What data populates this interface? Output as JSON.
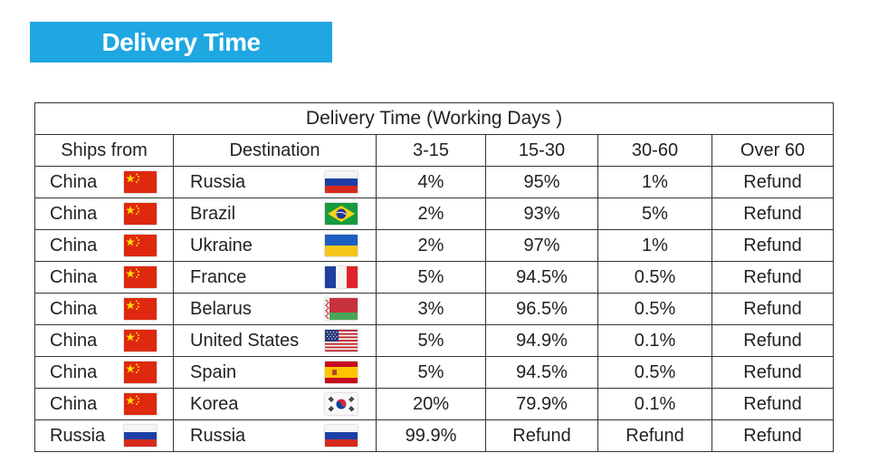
{
  "banner": {
    "title": "Delivery Time"
  },
  "table": {
    "title": "Delivery Time (Working Days )",
    "headers": [
      "Ships from",
      "Destination",
      "3-15",
      "15-30",
      "30-60",
      "Over 60"
    ],
    "rows": [
      {
        "from": "China",
        "from_flag": "china-flag",
        "dest": "Russia",
        "dest_flag": "russia-flag",
        "d3_15": "4%",
        "d15_30": "95%",
        "d30_60": "1%",
        "over60": "Refund"
      },
      {
        "from": "China",
        "from_flag": "china-flag",
        "dest": "Brazil",
        "dest_flag": "brazil-flag",
        "d3_15": "2%",
        "d15_30": "93%",
        "d30_60": "5%",
        "over60": "Refund"
      },
      {
        "from": "China",
        "from_flag": "china-flag",
        "dest": "Ukraine",
        "dest_flag": "ukraine-flag",
        "d3_15": "2%",
        "d15_30": "97%",
        "d30_60": "1%",
        "over60": "Refund"
      },
      {
        "from": "China",
        "from_flag": "china-flag",
        "dest": "France",
        "dest_flag": "france-flag",
        "d3_15": "5%",
        "d15_30": "94.5%",
        "d30_60": "0.5%",
        "over60": "Refund"
      },
      {
        "from": "China",
        "from_flag": "china-flag",
        "dest": "Belarus",
        "dest_flag": "belarus-flag",
        "d3_15": "3%",
        "d15_30": "96.5%",
        "d30_60": "0.5%",
        "over60": "Refund"
      },
      {
        "from": "China",
        "from_flag": "china-flag",
        "dest": "United States",
        "dest_flag": "usa-flag",
        "d3_15": "5%",
        "d15_30": "94.9%",
        "d30_60": "0.1%",
        "over60": "Refund"
      },
      {
        "from": "China",
        "from_flag": "china-flag",
        "dest": "Spain",
        "dest_flag": "spain-flag",
        "d3_15": "5%",
        "d15_30": "94.5%",
        "d30_60": "0.5%",
        "over60": "Refund"
      },
      {
        "from": "China",
        "from_flag": "china-flag",
        "dest": "Korea",
        "dest_flag": "korea-flag",
        "d3_15": "20%",
        "d15_30": "79.9%",
        "d30_60": "0.1%",
        "over60": "Refund"
      },
      {
        "from": "Russia",
        "from_flag": "russia-flag",
        "dest": "Russia",
        "dest_flag": "russia-flag",
        "d3_15": "99.9%",
        "d15_30": "Refund",
        "d30_60": "Refund",
        "over60": "Refund"
      }
    ]
  }
}
